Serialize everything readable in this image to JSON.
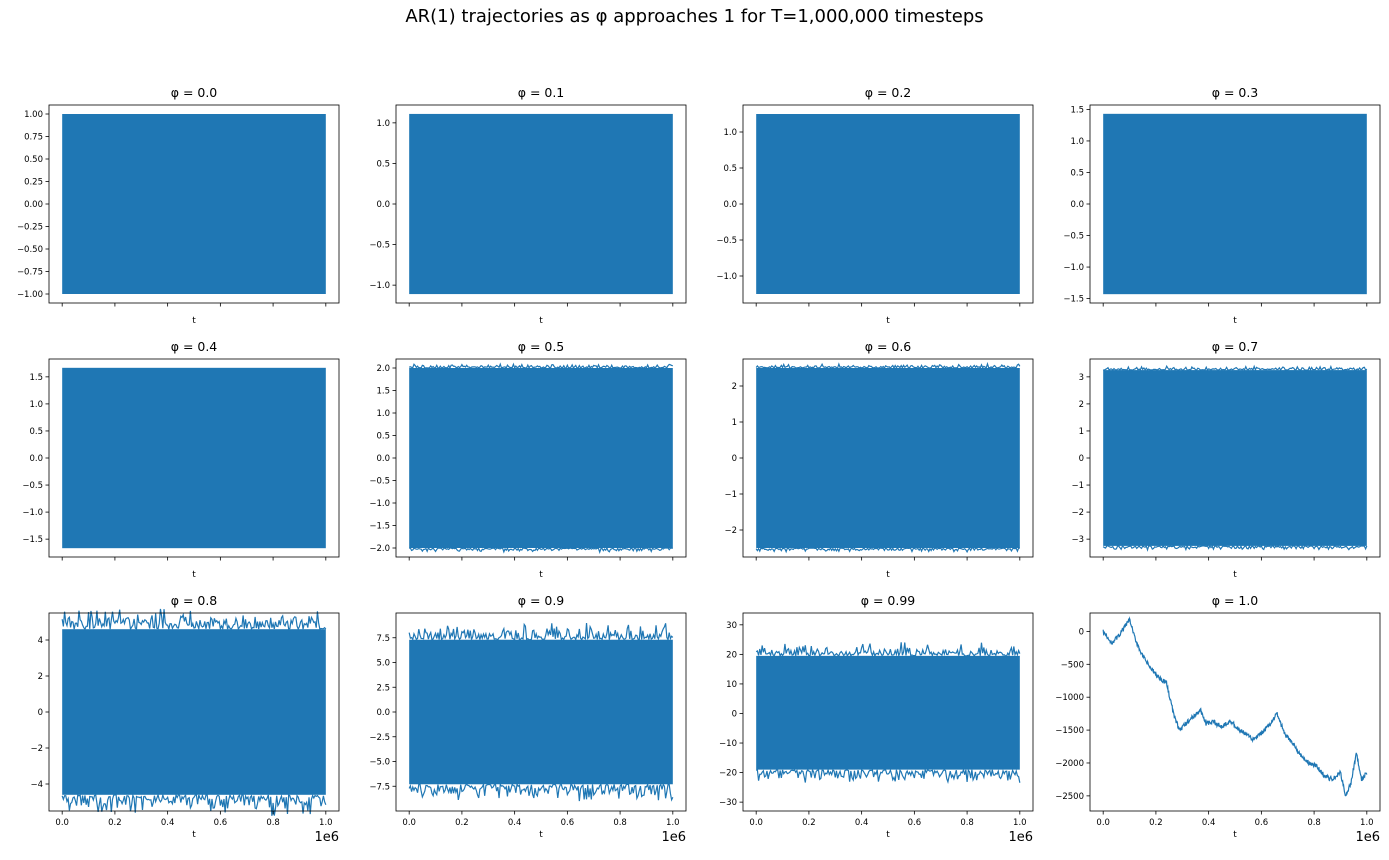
{
  "figure": {
    "suptitle": "AR(1) trajectories as φ approaches 1 for T=1,000,000 timesteps",
    "line_color": "#1f77b4"
  },
  "chart_data": [
    {
      "type": "line",
      "title": "φ = 0.0",
      "xlabel": "t",
      "ylabel": "",
      "x_range": [
        0,
        1000000
      ],
      "x_ticks": [
        0,
        200000,
        400000,
        600000,
        800000,
        1000000
      ],
      "x_tick_labels_shown": false,
      "x_offset_label": "",
      "y_ticks": [
        -1.0,
        -0.75,
        -0.5,
        -0.25,
        0.0,
        0.25,
        0.5,
        0.75,
        1.0
      ],
      "y_tick_labels": [
        "−1.00",
        "−0.75",
        "−0.50",
        "−0.25",
        "0.00",
        "0.25",
        "0.50",
        "0.75",
        "1.00"
      ],
      "ylim": [
        -1.1,
        1.1
      ],
      "band": [
        -1.0,
        1.0
      ],
      "shape": "band"
    },
    {
      "type": "line",
      "title": "φ = 0.1",
      "xlabel": "t",
      "ylabel": "",
      "x_range": [
        0,
        1000000
      ],
      "x_ticks": [
        0,
        200000,
        400000,
        600000,
        800000,
        1000000
      ],
      "x_tick_labels_shown": false,
      "x_offset_label": "",
      "y_ticks": [
        -1.0,
        -0.5,
        0.0,
        0.5,
        1.0
      ],
      "y_tick_labels": [
        "−1.0",
        "−0.5",
        "0.0",
        "0.5",
        "1.0"
      ],
      "ylim": [
        -1.22,
        1.22
      ],
      "band": [
        -1.11,
        1.11
      ],
      "shape": "band"
    },
    {
      "type": "line",
      "title": "φ = 0.2",
      "xlabel": "t",
      "ylabel": "",
      "x_range": [
        0,
        1000000
      ],
      "x_ticks": [
        0,
        200000,
        400000,
        600000,
        800000,
        1000000
      ],
      "x_tick_labels_shown": false,
      "x_offset_label": "",
      "y_ticks": [
        -1.0,
        -0.5,
        0.0,
        0.5,
        1.0
      ],
      "y_tick_labels": [
        "−1.0",
        "−0.5",
        "0.0",
        "0.5",
        "1.0"
      ],
      "ylim": [
        -1.375,
        1.375
      ],
      "band": [
        -1.25,
        1.25
      ],
      "shape": "band"
    },
    {
      "type": "line",
      "title": "φ = 0.3",
      "xlabel": "t",
      "ylabel": "",
      "x_range": [
        0,
        1000000
      ],
      "x_ticks": [
        0,
        200000,
        400000,
        600000,
        800000,
        1000000
      ],
      "x_tick_labels_shown": false,
      "x_offset_label": "",
      "y_ticks": [
        -1.5,
        -1.0,
        -0.5,
        0.0,
        0.5,
        1.0,
        1.5
      ],
      "y_tick_labels": [
        "−1.5",
        "−1.0",
        "−0.5",
        "0.0",
        "0.5",
        "1.0",
        "1.5"
      ],
      "ylim": [
        -1.57,
        1.57
      ],
      "band": [
        -1.43,
        1.43
      ],
      "shape": "band"
    },
    {
      "type": "line",
      "title": "φ = 0.4",
      "xlabel": "t",
      "ylabel": "",
      "x_range": [
        0,
        1000000
      ],
      "x_ticks": [
        0,
        200000,
        400000,
        600000,
        800000,
        1000000
      ],
      "x_tick_labels_shown": false,
      "x_offset_label": "",
      "y_ticks": [
        -1.5,
        -1.0,
        -0.5,
        0.0,
        0.5,
        1.0,
        1.5
      ],
      "y_tick_labels": [
        "−1.5",
        "−1.0",
        "−0.5",
        "0.0",
        "0.5",
        "1.0",
        "1.5"
      ],
      "ylim": [
        -1.83,
        1.83
      ],
      "band": [
        -1.667,
        1.667
      ],
      "shape": "band"
    },
    {
      "type": "line",
      "title": "φ = 0.5",
      "xlabel": "t",
      "ylabel": "",
      "x_range": [
        0,
        1000000
      ],
      "x_ticks": [
        0,
        200000,
        400000,
        600000,
        800000,
        1000000
      ],
      "x_tick_labels_shown": false,
      "x_offset_label": "",
      "y_ticks": [
        -2.0,
        -1.5,
        -1.0,
        -0.5,
        0.0,
        0.5,
        1.0,
        1.5,
        2.0
      ],
      "y_tick_labels": [
        "−2.0",
        "−1.5",
        "−1.0",
        "−0.5",
        "0.0",
        "0.5",
        "1.0",
        "1.5",
        "2.0"
      ],
      "ylim": [
        -2.2,
        2.2
      ],
      "band": [
        -2.0,
        2.0
      ],
      "shape": "band"
    },
    {
      "type": "line",
      "title": "φ = 0.6",
      "xlabel": "t",
      "ylabel": "",
      "x_range": [
        0,
        1000000
      ],
      "x_ticks": [
        0,
        200000,
        400000,
        600000,
        800000,
        1000000
      ],
      "x_tick_labels_shown": false,
      "x_offset_label": "",
      "y_ticks": [
        -2,
        -1,
        0,
        1,
        2
      ],
      "y_tick_labels": [
        "−2",
        "−1",
        "0",
        "1",
        "2"
      ],
      "ylim": [
        -2.75,
        2.75
      ],
      "band": [
        -2.5,
        2.5
      ],
      "shape": "band"
    },
    {
      "type": "line",
      "title": "φ = 0.7",
      "xlabel": "t",
      "ylabel": "",
      "x_range": [
        0,
        1000000
      ],
      "x_ticks": [
        0,
        200000,
        400000,
        600000,
        800000,
        1000000
      ],
      "x_tick_labels_shown": false,
      "x_offset_label": "",
      "y_ticks": [
        -3,
        -2,
        -1,
        0,
        1,
        2,
        3
      ],
      "y_tick_labels": [
        "−3",
        "−2",
        "−1",
        "0",
        "1",
        "2",
        "3"
      ],
      "ylim": [
        -3.66,
        3.66
      ],
      "band": [
        -3.25,
        3.25
      ],
      "shape": "band"
    },
    {
      "type": "line",
      "title": "φ = 0.8",
      "xlabel": "t",
      "ylabel": "",
      "x_range": [
        0,
        1000000
      ],
      "x_ticks": [
        0,
        200000,
        400000,
        600000,
        800000,
        1000000
      ],
      "x_tick_labels": [
        "0.0",
        "0.2",
        "0.4",
        "0.6",
        "0.8",
        "1.0"
      ],
      "x_tick_labels_shown": true,
      "x_offset_label": "1e6",
      "y_ticks": [
        -4,
        -2,
        0,
        2,
        4
      ],
      "y_tick_labels": [
        "−4",
        "−2",
        "0",
        "2",
        "4"
      ],
      "ylim": [
        -5.5,
        5.5
      ],
      "band": [
        -4.6,
        4.6
      ],
      "shape": "band"
    },
    {
      "type": "line",
      "title": "φ = 0.9",
      "xlabel": "t",
      "ylabel": "",
      "x_range": [
        0,
        1000000
      ],
      "x_ticks": [
        0,
        200000,
        400000,
        600000,
        800000,
        1000000
      ],
      "x_tick_labels": [
        "0.0",
        "0.2",
        "0.4",
        "0.6",
        "0.8",
        "1.0"
      ],
      "x_tick_labels_shown": true,
      "x_offset_label": "1e6",
      "y_ticks": [
        -7.5,
        -5.0,
        -2.5,
        0.0,
        2.5,
        5.0,
        7.5
      ],
      "y_tick_labels": [
        "−7.5",
        "−5.0",
        "−2.5",
        "0.0",
        "2.5",
        "5.0",
        "7.5"
      ],
      "ylim": [
        -10.0,
        10.0
      ],
      "band": [
        -7.3,
        7.3
      ],
      "shape": "band"
    },
    {
      "type": "line",
      "title": "φ = 0.99",
      "xlabel": "t",
      "ylabel": "",
      "x_range": [
        0,
        1000000
      ],
      "x_ticks": [
        0,
        200000,
        400000,
        600000,
        800000,
        1000000
      ],
      "x_tick_labels": [
        "0.0",
        "0.2",
        "0.4",
        "0.6",
        "0.8",
        "1.0"
      ],
      "x_tick_labels_shown": true,
      "x_offset_label": "1e6",
      "y_ticks": [
        -30,
        -20,
        -10,
        0,
        10,
        20,
        30
      ],
      "y_tick_labels": [
        "−30",
        "−20",
        "−10",
        "0",
        "10",
        "20",
        "30"
      ],
      "ylim": [
        -33,
        34
      ],
      "band": [
        -19.0,
        19.5
      ],
      "shape": "band"
    },
    {
      "type": "line",
      "title": "φ = 1.0",
      "xlabel": "t",
      "ylabel": "",
      "x_range": [
        0,
        1000000
      ],
      "x_ticks": [
        0,
        200000,
        400000,
        600000,
        800000,
        1000000
      ],
      "x_tick_labels": [
        "0.0",
        "0.2",
        "0.4",
        "0.6",
        "0.8",
        "1.0"
      ],
      "x_tick_labels_shown": true,
      "x_offset_label": "1e6",
      "y_ticks": [
        -2500,
        -2000,
        -1500,
        -1000,
        -500,
        0
      ],
      "y_tick_labels": [
        "−2500",
        "−2000",
        "−1500",
        "−1000",
        "−500",
        "0"
      ],
      "ylim": [
        -2730,
        280
      ],
      "shape": "walk",
      "x": [
        0,
        30000,
        60000,
        90000,
        100000,
        120000,
        150000,
        180000,
        210000,
        240000,
        270000,
        290000,
        310000,
        340000,
        370000,
        390000,
        420000,
        450000,
        480000,
        510000,
        540000,
        570000,
        600000,
        630000,
        660000,
        690000,
        720000,
        750000,
        780000,
        810000,
        840000,
        870000,
        900000,
        920000,
        940000,
        960000,
        980000,
        1000000
      ],
      "y": [
        0,
        -180,
        -60,
        120,
        180,
        -100,
        -380,
        -560,
        -700,
        -780,
        -1300,
        -1500,
        -1420,
        -1300,
        -1200,
        -1400,
        -1380,
        -1450,
        -1350,
        -1480,
        -1560,
        -1650,
        -1550,
        -1430,
        -1250,
        -1580,
        -1700,
        -1900,
        -2000,
        -2050,
        -2200,
        -2250,
        -2150,
        -2500,
        -2300,
        -1850,
        -2250,
        -2150
      ]
    }
  ]
}
